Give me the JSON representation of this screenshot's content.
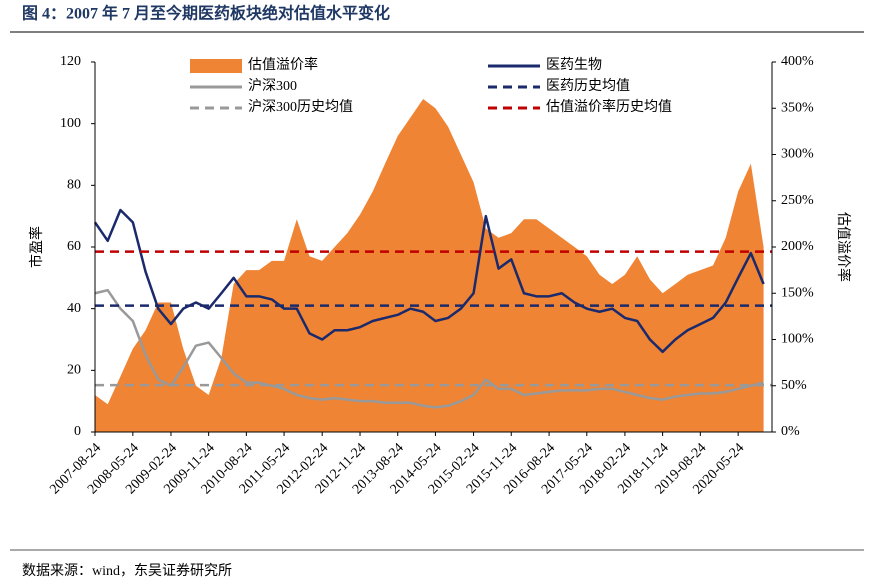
{
  "chart_data": {
    "type": "line",
    "title": "图 4：2007 年 7 月至今期医药板块绝对估值水平变化",
    "source": "数据来源：wind，东吴证券研究所",
    "ylabel": "市盈率",
    "y2label": "估值溢价率",
    "ylim": [
      0,
      120
    ],
    "yticks": [
      0,
      20,
      40,
      60,
      80,
      100,
      120
    ],
    "y2lim": [
      0,
      400
    ],
    "y2ticks": [
      {
        "value": 0,
        "label": "0%"
      },
      {
        "value": 50,
        "label": "50%"
      },
      {
        "value": 100,
        "label": "100%"
      },
      {
        "value": 150,
        "label": "150%"
      },
      {
        "value": 200,
        "label": "200%"
      },
      {
        "value": 250,
        "label": "250%"
      },
      {
        "value": 300,
        "label": "300%"
      },
      {
        "value": 350,
        "label": "350%"
      },
      {
        "value": 400,
        "label": "400%"
      }
    ],
    "xlim": [
      "2007-08-24",
      "2021-01-24"
    ],
    "xticks": [
      "2007-08-24",
      "2008-05-24",
      "2009-02-24",
      "2009-11-24",
      "2010-08-24",
      "2011-05-24",
      "2012-02-24",
      "2012-11-24",
      "2013-08-24",
      "2014-05-24",
      "2015-02-24",
      "2015-11-24",
      "2016-08-24",
      "2017-05-24",
      "2018-02-24",
      "2018-11-24",
      "2019-08-24",
      "2020-05-24"
    ],
    "x": [
      "2007-08-24",
      "2007-11-24",
      "2008-02-24",
      "2008-05-24",
      "2008-08-24",
      "2008-11-24",
      "2009-02-24",
      "2009-05-24",
      "2009-08-24",
      "2009-11-24",
      "2010-02-24",
      "2010-05-24",
      "2010-08-24",
      "2010-11-24",
      "2011-02-24",
      "2011-05-24",
      "2011-08-24",
      "2011-11-24",
      "2012-02-24",
      "2012-05-24",
      "2012-08-24",
      "2012-11-24",
      "2013-02-24",
      "2013-05-24",
      "2013-08-24",
      "2013-11-24",
      "2014-02-24",
      "2014-05-24",
      "2014-08-24",
      "2014-11-24",
      "2015-02-24",
      "2015-05-24",
      "2015-08-24",
      "2015-11-24",
      "2016-02-24",
      "2016-05-24",
      "2016-08-24",
      "2016-11-24",
      "2017-02-24",
      "2017-05-24",
      "2017-08-24",
      "2017-11-24",
      "2018-02-24",
      "2018-05-24",
      "2018-08-24",
      "2018-11-24",
      "2019-02-24",
      "2019-05-24",
      "2019-08-24",
      "2019-11-24",
      "2020-02-24",
      "2020-05-24",
      "2020-08-24",
      "2020-11-24"
    ],
    "series": [
      {
        "name": "估值溢价率",
        "type": "area",
        "axis": "y2",
        "color": "#ef8434",
        "values": [
          40,
          30,
          60,
          90,
          110,
          140,
          140,
          90,
          50,
          40,
          80,
          160,
          175,
          175,
          185,
          185,
          230,
          190,
          185,
          200,
          215,
          235,
          260,
          290,
          320,
          340,
          360,
          350,
          330,
          300,
          270,
          220,
          210,
          215,
          230,
          230,
          220,
          210,
          200,
          190,
          170,
          160,
          170,
          190,
          165,
          150,
          160,
          170,
          175,
          180,
          210,
          260,
          290,
          200
        ]
      },
      {
        "name": "医药生物",
        "type": "line",
        "color": "#1a2a6c",
        "values": [
          68,
          62,
          72,
          68,
          52,
          40,
          35,
          40,
          42,
          40,
          45,
          50,
          44,
          44,
          43,
          40,
          40,
          32,
          30,
          33,
          33,
          34,
          36,
          37,
          38,
          40,
          39,
          36,
          37,
          40,
          45,
          70,
          53,
          56,
          45,
          44,
          44,
          45,
          42,
          40,
          39,
          40,
          37,
          36,
          30,
          26,
          30,
          33,
          35,
          37,
          42,
          50,
          58,
          48
        ]
      },
      {
        "name": "沪深300",
        "type": "line",
        "color": "#999999",
        "values": [
          45,
          46,
          40,
          36,
          25,
          17,
          15,
          21,
          28,
          29,
          24,
          19,
          16,
          16,
          15,
          14,
          12,
          11,
          10.5,
          11,
          10.5,
          10,
          10,
          9.5,
          9.5,
          9.5,
          8.5,
          8,
          8.5,
          10,
          12,
          17,
          14,
          14,
          12,
          12.5,
          13,
          13.5,
          13.5,
          13.5,
          14,
          14,
          13,
          12,
          11,
          10.5,
          11.5,
          12,
          12.5,
          12.5,
          13,
          14,
          15,
          16
        ]
      },
      {
        "name": "医药历史均值",
        "type": "hline",
        "dash": true,
        "color": "#1a2a6c",
        "value": 41
      },
      {
        "name": "沪深300历史均值",
        "type": "hline",
        "dash": true,
        "color": "#999999",
        "value": 15.2
      },
      {
        "name": "估值溢价率历史均值",
        "type": "hline",
        "dash": true,
        "axis": "y2",
        "color": "#c00000",
        "value": 195
      }
    ]
  }
}
